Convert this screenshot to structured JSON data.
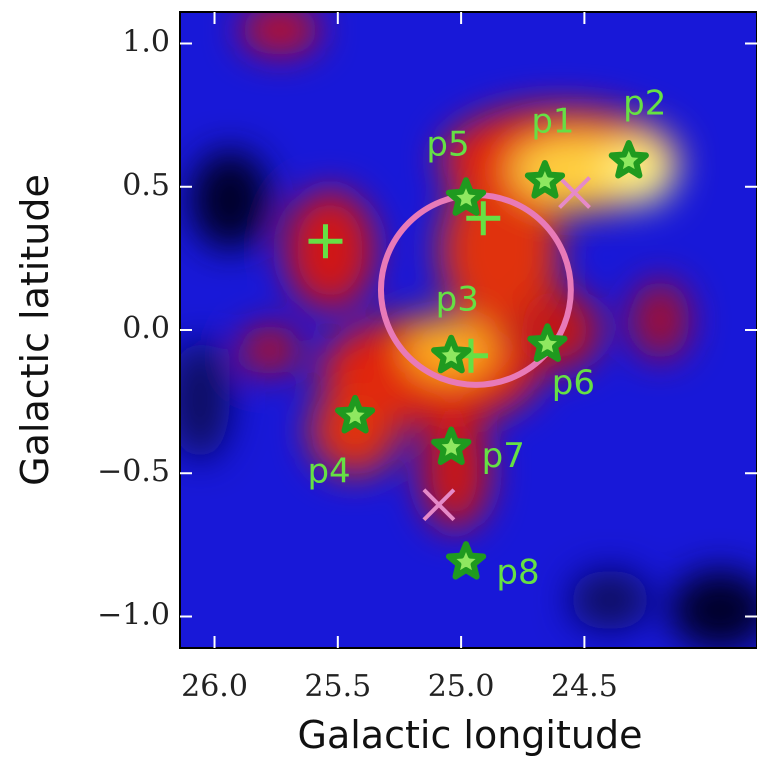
{
  "chart_data": {
    "type": "scatter",
    "xlabel": "Galactic longitude",
    "ylabel": "Galactic latitude",
    "xlim": [
      26.14,
      23.8
    ],
    "ylim": [
      -1.11,
      1.11
    ],
    "xticks": [
      {
        "value": 26,
        "label": "26.0"
      },
      25.5,
      {
        "value": 25,
        "label": "25.0"
      },
      24.5
    ],
    "yticks": [
      {
        "value": 1,
        "label": "1.0"
      },
      0.5,
      {
        "value": 0,
        "label": "0.0"
      },
      {
        "value": -0.5,
        "label": "−0.5"
      },
      {
        "value": -1,
        "label": "−1.0"
      }
    ],
    "sources": {
      "labels": [
        "p1",
        "p2",
        "p5",
        "p3",
        "p6",
        "p4",
        "p7",
        "p8"
      ],
      "x": [
        24.66,
        24.32,
        24.98,
        25.04,
        24.65,
        25.43,
        25.04,
        24.98
      ],
      "y": [
        0.52,
        0.59,
        0.46,
        -0.09,
        -0.05,
        -0.3,
        -0.41,
        -0.81
      ],
      "color": "#1f9a1f",
      "label_color": "#66e044"
    },
    "crosses": {
      "x": [
        25.55,
        24.91,
        24.96
      ],
      "y": [
        0.31,
        0.39,
        -0.09
      ],
      "color": "#66e044"
    },
    "x_marks": {
      "x": [
        24.54,
        25.09
      ],
      "y": [
        0.48,
        -0.61
      ],
      "color": "#e58ac8"
    },
    "circle": {
      "x": 24.94,
      "y": 0.14,
      "radius": 0.385,
      "color": "#e87ab8"
    }
  }
}
